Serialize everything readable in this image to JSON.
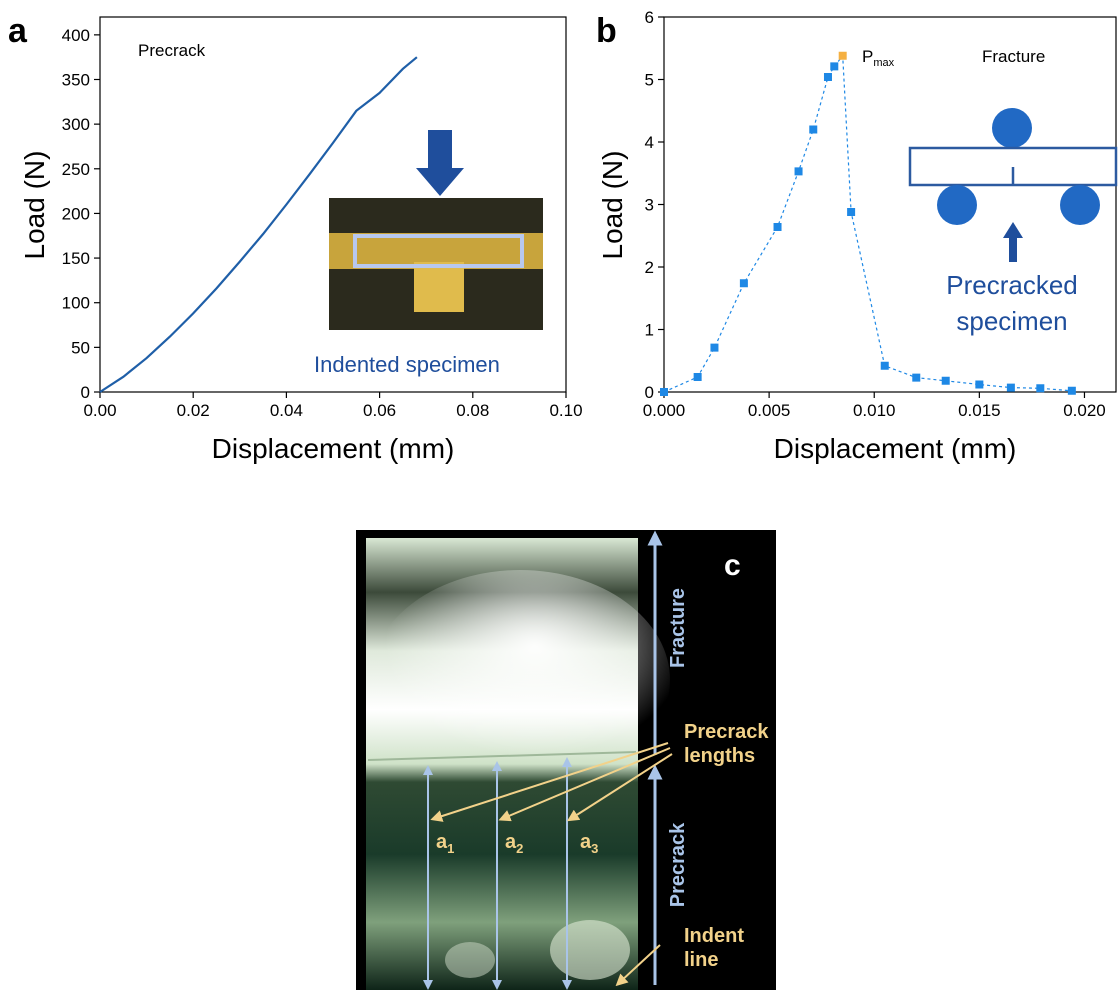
{
  "chart_data": [
    {
      "panel": "a",
      "type": "line",
      "xlabel": "Displacement (mm)",
      "ylabel": "Load (N)",
      "xlim": [
        0,
        0.1
      ],
      "ylim": [
        0,
        420
      ],
      "xticks": [
        "0.00",
        "0.02",
        "0.04",
        "0.06",
        "0.08",
        "0.10"
      ],
      "yticks": [
        "0",
        "50",
        "100",
        "150",
        "200",
        "250",
        "300",
        "350",
        "400"
      ],
      "annotation": "Precrack",
      "inset_label": "Indented specimen",
      "series": [
        {
          "color": "#1f5fa8",
          "x": [
            0,
            0.005,
            0.01,
            0.015,
            0.02,
            0.025,
            0.03,
            0.035,
            0.04,
            0.045,
            0.05,
            0.055,
            0.06,
            0.065,
            0.068
          ],
          "y": [
            0,
            17,
            38,
            62,
            88,
            116,
            146,
            177,
            210,
            244,
            279,
            315,
            335,
            362,
            375
          ]
        }
      ]
    },
    {
      "panel": "b",
      "type": "scatter",
      "xlabel": "Displacement (mm)",
      "ylabel": "Load (N)",
      "xlim": [
        0,
        0.0215
      ],
      "ylim": [
        0,
        6
      ],
      "xticks": [
        "0.000",
        "0.005",
        "0.010",
        "0.015",
        "0.020"
      ],
      "yticks": [
        "0",
        "1",
        "2",
        "3",
        "4",
        "5",
        "6"
      ],
      "annotation": "Fracture",
      "peak_label": "P",
      "peak_sub": "max",
      "inset_label": [
        "Precracked",
        "specimen"
      ],
      "series": [
        {
          "color": "#1e88e5",
          "x": [
            0.0,
            0.0016,
            0.0024,
            0.0038,
            0.0054,
            0.0064,
            0.0071,
            0.0078,
            0.0081,
            0.0085,
            0.0089,
            0.0105,
            0.012,
            0.0134,
            0.015,
            0.0165,
            0.0179,
            0.0194
          ],
          "y": [
            0.0,
            0.24,
            0.71,
            1.74,
            2.64,
            3.53,
            4.2,
            5.04,
            5.21,
            5.38,
            2.88,
            0.42,
            0.23,
            0.18,
            0.12,
            0.07,
            0.06,
            0.02
          ]
        }
      ],
      "peak": {
        "x": 0.0085,
        "y": 5.38,
        "color": "#f5b041"
      }
    }
  ],
  "panel_c": {
    "label": "c",
    "fracture": "Fracture",
    "precrack": "Precrack",
    "precrack_lengths": [
      "Precrack",
      "lengths"
    ],
    "indent_line": [
      "Indent",
      "line"
    ],
    "a_labels": [
      "a",
      "a",
      "a"
    ],
    "a_subs": [
      "1",
      "2",
      "3"
    ]
  }
}
